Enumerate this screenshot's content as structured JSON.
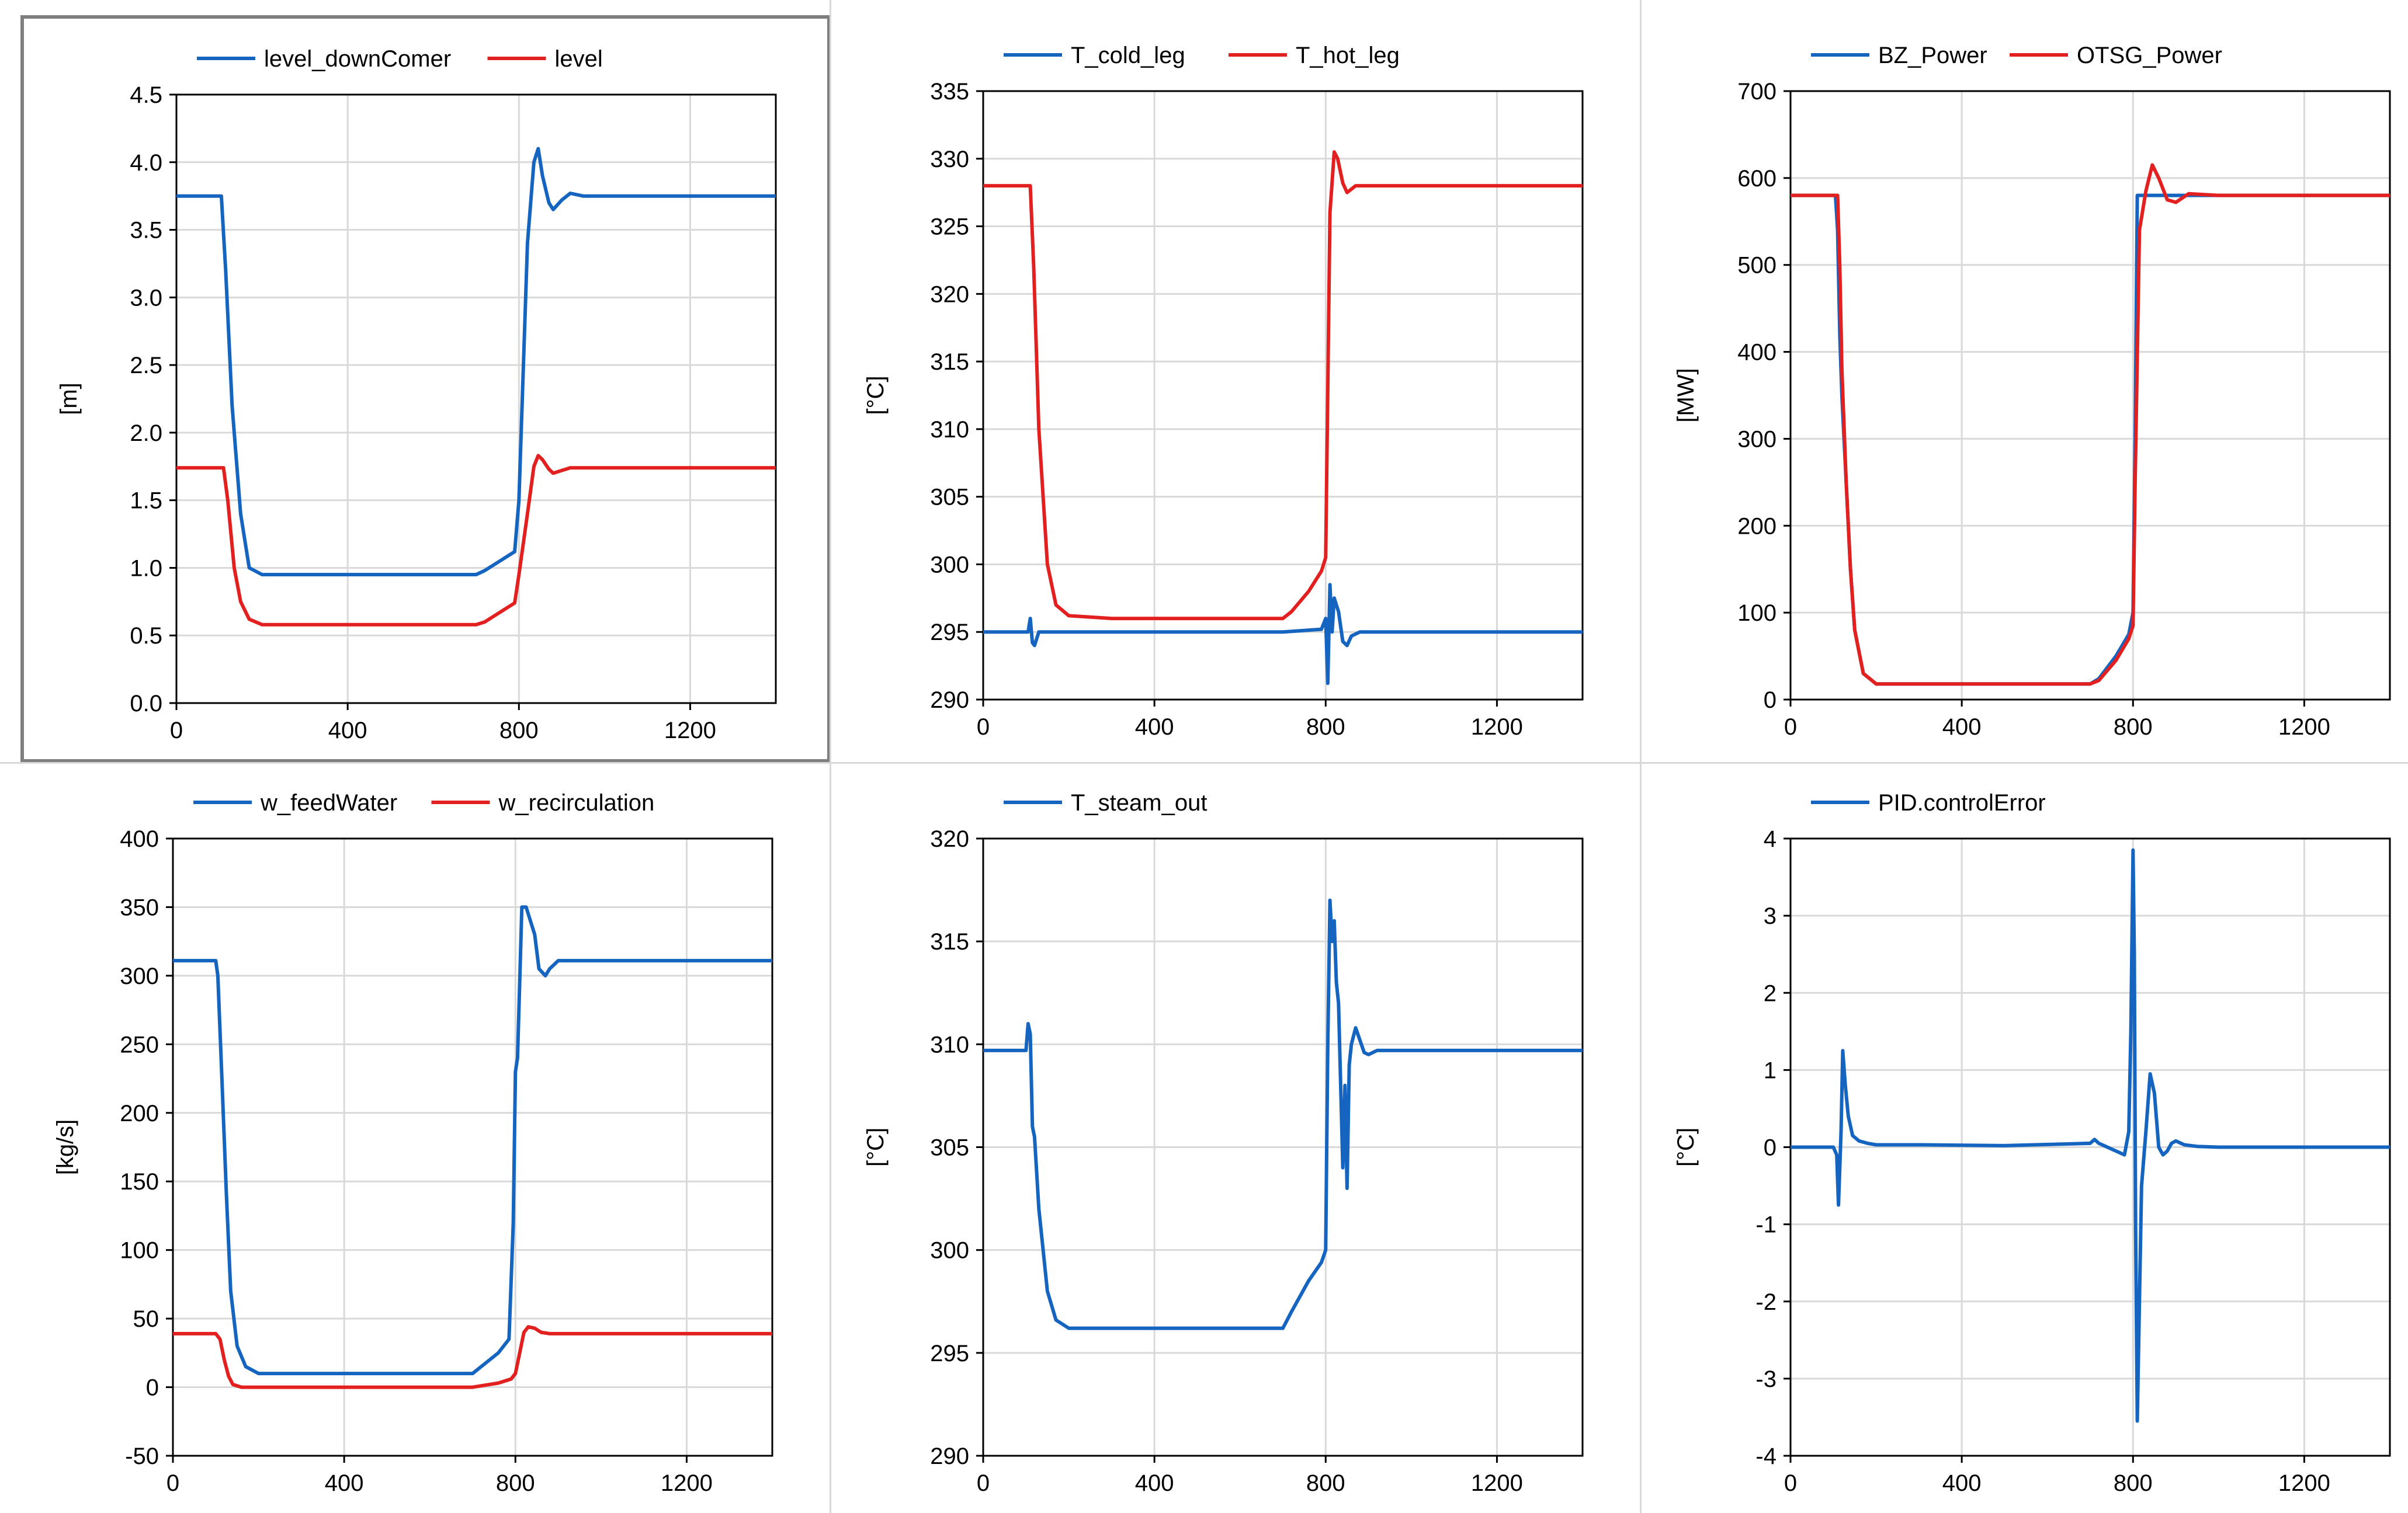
{
  "window": {
    "selected_panel": 0
  },
  "colors": {
    "blue": "#1565c0",
    "red": "#e32020",
    "grid": "#d9d9d9",
    "axis": "#000000"
  },
  "chart_data": [
    {
      "type": "line",
      "ylabel": "[m]",
      "xlabel": "",
      "xlim": [
        0,
        1400
      ],
      "ylim": [
        0.0,
        4.5
      ],
      "xticks": [
        0,
        400,
        800,
        1200
      ],
      "xtick_labels": [
        "0",
        "400",
        "800",
        "1200"
      ],
      "yticks": [
        0,
        0.5,
        1,
        1.5,
        2,
        2.5,
        3,
        3.5,
        4,
        4.5
      ],
      "ytick_labels": [
        "0.0",
        "0.5",
        "1.0",
        "1.5",
        "2.0",
        "2.5",
        "3.0",
        "3.5",
        "4.0",
        "4.5"
      ],
      "series": [
        {
          "name": "level_downComer",
          "color": "#1565c0",
          "x": [
            0,
            105,
            115,
            130,
            150,
            170,
            200,
            300,
            500,
            700,
            720,
            760,
            790,
            800,
            820,
            835,
            845,
            855,
            870,
            880,
            900,
            920,
            950,
            1000,
            1400
          ],
          "y": [
            3.75,
            3.75,
            3.2,
            2.2,
            1.4,
            1.0,
            0.95,
            0.95,
            0.95,
            0.95,
            0.98,
            1.06,
            1.12,
            1.5,
            3.4,
            4.0,
            4.1,
            3.9,
            3.7,
            3.65,
            3.72,
            3.77,
            3.75,
            3.75,
            3.75
          ]
        },
        {
          "name": "level",
          "color": "#e32020",
          "x": [
            0,
            110,
            120,
            135,
            150,
            170,
            200,
            300,
            500,
            700,
            720,
            760,
            790,
            800,
            820,
            835,
            845,
            855,
            870,
            880,
            900,
            920,
            950,
            1000,
            1400
          ],
          "y": [
            1.74,
            1.74,
            1.5,
            1.0,
            0.75,
            0.62,
            0.58,
            0.58,
            0.58,
            0.58,
            0.6,
            0.68,
            0.74,
            0.95,
            1.4,
            1.75,
            1.83,
            1.8,
            1.73,
            1.7,
            1.72,
            1.74,
            1.74,
            1.74,
            1.74
          ]
        }
      ]
    },
    {
      "type": "line",
      "ylabel": "[°C]",
      "xlabel": "",
      "xlim": [
        0,
        1400
      ],
      "ylim": [
        290,
        335
      ],
      "xticks": [
        0,
        400,
        800,
        1200
      ],
      "xtick_labels": [
        "0",
        "400",
        "800",
        "1200"
      ],
      "yticks": [
        290,
        295,
        300,
        305,
        310,
        315,
        320,
        325,
        330,
        335
      ],
      "ytick_labels": [
        "290",
        "295",
        "300",
        "305",
        "310",
        "315",
        "320",
        "325",
        "330",
        "335"
      ],
      "series": [
        {
          "name": "T_cold_leg",
          "color": "#1565c0",
          "x": [
            0,
            105,
            110,
            115,
            120,
            130,
            150,
            200,
            700,
            790,
            800,
            805,
            810,
            815,
            820,
            830,
            840,
            850,
            860,
            880,
            900,
            1400
          ],
          "y": [
            295,
            295,
            296,
            294.2,
            294,
            295,
            295,
            295,
            295,
            295.2,
            296,
            291.2,
            298.5,
            295,
            297.5,
            296.5,
            294.3,
            294,
            294.7,
            295,
            295,
            295
          ]
        },
        {
          "name": "T_hot_leg",
          "color": "#e32020",
          "x": [
            0,
            110,
            118,
            130,
            150,
            170,
            200,
            300,
            500,
            700,
            720,
            760,
            790,
            800,
            805,
            810,
            820,
            828,
            840,
            850,
            870,
            900,
            1000,
            1400
          ],
          "y": [
            328,
            328,
            322,
            310,
            300,
            297,
            296.2,
            296,
            296,
            296,
            296.5,
            298,
            299.5,
            300.5,
            313,
            326,
            330.5,
            330,
            328.2,
            327.5,
            328,
            328,
            328,
            328
          ]
        }
      ]
    },
    {
      "type": "line",
      "ylabel": "[MW]",
      "xlabel": "",
      "xlim": [
        0,
        1400
      ],
      "ylim": [
        0,
        700
      ],
      "xticks": [
        0,
        400,
        800,
        1200
      ],
      "xtick_labels": [
        "0",
        "400",
        "800",
        "1200"
      ],
      "yticks": [
        0,
        100,
        200,
        300,
        400,
        500,
        600,
        700
      ],
      "ytick_labels": [
        "0",
        "100",
        "200",
        "300",
        "400",
        "500",
        "600",
        "700"
      ],
      "series": [
        {
          "name": "BZ_Power",
          "color": "#1565c0",
          "x": [
            0,
            105,
            110,
            115,
            120,
            130,
            140,
            150,
            170,
            200,
            700,
            720,
            760,
            790,
            800,
            805,
            810,
            1400
          ],
          "y": [
            580,
            580,
            540,
            420,
            350,
            250,
            150,
            80,
            30,
            18,
            18,
            24,
            50,
            75,
            100,
            300,
            580,
            580
          ]
        },
        {
          "name": "OTSG_Power",
          "color": "#e32020",
          "x": [
            0,
            110,
            115,
            120,
            130,
            140,
            150,
            170,
            200,
            700,
            720,
            760,
            790,
            800,
            805,
            815,
            830,
            845,
            860,
            880,
            900,
            930,
            1000,
            1400
          ],
          "y": [
            580,
            580,
            500,
            380,
            250,
            150,
            80,
            30,
            18,
            18,
            22,
            45,
            70,
            85,
            250,
            540,
            585,
            615,
            600,
            575,
            572,
            582,
            580,
            580
          ]
        }
      ]
    },
    {
      "type": "line",
      "ylabel": "[kg/s]",
      "xlabel": "",
      "xlim": [
        0,
        1400
      ],
      "ylim": [
        -50,
        400
      ],
      "xticks": [
        0,
        400,
        800,
        1200
      ],
      "xtick_labels": [
        "0",
        "400",
        "800",
        "1200"
      ],
      "yticks": [
        -50,
        0,
        50,
        100,
        150,
        200,
        250,
        300,
        350,
        400
      ],
      "ytick_labels": [
        "-50",
        "0",
        "50",
        "100",
        "150",
        "200",
        "250",
        "300",
        "350",
        "400"
      ],
      "series": [
        {
          "name": "w_feedWater",
          "color": "#1565c0",
          "x": [
            0,
            100,
            105,
            115,
            125,
            135,
            150,
            170,
            200,
            300,
            700,
            720,
            760,
            785,
            795,
            800,
            805,
            815,
            825,
            845,
            855,
            870,
            880,
            900,
            930,
            1000,
            1400
          ],
          "y": [
            311,
            311,
            300,
            220,
            140,
            70,
            30,
            15,
            10,
            10,
            10,
            15,
            25,
            35,
            120,
            230,
            240,
            350,
            350,
            330,
            305,
            300,
            305,
            311,
            311,
            311,
            311
          ]
        },
        {
          "name": "w_recirculation",
          "color": "#e32020",
          "x": [
            0,
            100,
            110,
            120,
            130,
            140,
            160,
            200,
            300,
            500,
            700,
            720,
            760,
            790,
            800,
            810,
            820,
            830,
            845,
            860,
            880,
            1000,
            1400
          ],
          "y": [
            39,
            39,
            35,
            20,
            8,
            2,
            0,
            0,
            0,
            0,
            0,
            1,
            3,
            6,
            10,
            25,
            40,
            44,
            43,
            40,
            39,
            39,
            39
          ]
        }
      ]
    },
    {
      "type": "line",
      "ylabel": "[°C]",
      "xlabel": "",
      "xlim": [
        0,
        1400
      ],
      "ylim": [
        290,
        320
      ],
      "xticks": [
        0,
        400,
        800,
        1200
      ],
      "xtick_labels": [
        "0",
        "400",
        "800",
        "1200"
      ],
      "yticks": [
        290,
        295,
        300,
        305,
        310,
        315,
        320
      ],
      "ytick_labels": [
        "290",
        "295",
        "300",
        "305",
        "310",
        "315",
        "320"
      ],
      "series": [
        {
          "name": "T_steam_out",
          "color": "#1565c0",
          "x": [
            0,
            100,
            105,
            110,
            115,
            120,
            130,
            150,
            170,
            200,
            300,
            500,
            700,
            720,
            760,
            790,
            800,
            805,
            810,
            815,
            820,
            825,
            830,
            840,
            845,
            850,
            855,
            860,
            870,
            880,
            890,
            900,
            920,
            950,
            1000,
            1400
          ],
          "y": [
            309.7,
            309.7,
            311,
            310.5,
            306,
            305.5,
            302,
            298,
            296.6,
            296.2,
            296.2,
            296.2,
            296.2,
            297,
            298.5,
            299.4,
            300,
            310,
            317,
            315,
            316,
            313,
            312,
            304,
            308,
            303,
            309,
            310,
            310.8,
            310.2,
            309.6,
            309.5,
            309.7,
            309.7,
            309.7,
            309.7
          ]
        }
      ]
    },
    {
      "type": "line",
      "ylabel": "[°C]",
      "xlabel": "",
      "xlim": [
        0,
        1400
      ],
      "ylim": [
        -4,
        4
      ],
      "xticks": [
        0,
        400,
        800,
        1200
      ],
      "xtick_labels": [
        "0",
        "400",
        "800",
        "1200"
      ],
      "yticks": [
        -4,
        -3,
        -2,
        -1,
        0,
        1,
        2,
        3,
        4
      ],
      "ytick_labels": [
        "-4",
        "-3",
        "-2",
        "-1",
        "0",
        "1",
        "2",
        "3",
        "4"
      ],
      "series": [
        {
          "name": "PID.controlError",
          "color": "#1565c0",
          "x": [
            0,
            100,
            108,
            112,
            118,
            122,
            128,
            135,
            145,
            160,
            180,
            200,
            300,
            500,
            700,
            710,
            720,
            780,
            790,
            795,
            800,
            803,
            806,
            810,
            815,
            820,
            830,
            840,
            850,
            860,
            870,
            880,
            890,
            900,
            920,
            950,
            1000,
            1400
          ],
          "y": [
            0,
            0,
            -0.1,
            -0.75,
            0.2,
            1.25,
            0.8,
            0.4,
            0.15,
            0.08,
            0.05,
            0.03,
            0.03,
            0.02,
            0.05,
            0.1,
            0.05,
            -0.1,
            0.2,
            1.5,
            3.85,
            2.5,
            -1.0,
            -3.55,
            -2.0,
            -0.5,
            0.2,
            0.95,
            0.7,
            0.0,
            -0.1,
            -0.05,
            0.05,
            0.08,
            0.03,
            0.01,
            0,
            0
          ]
        }
      ]
    }
  ]
}
